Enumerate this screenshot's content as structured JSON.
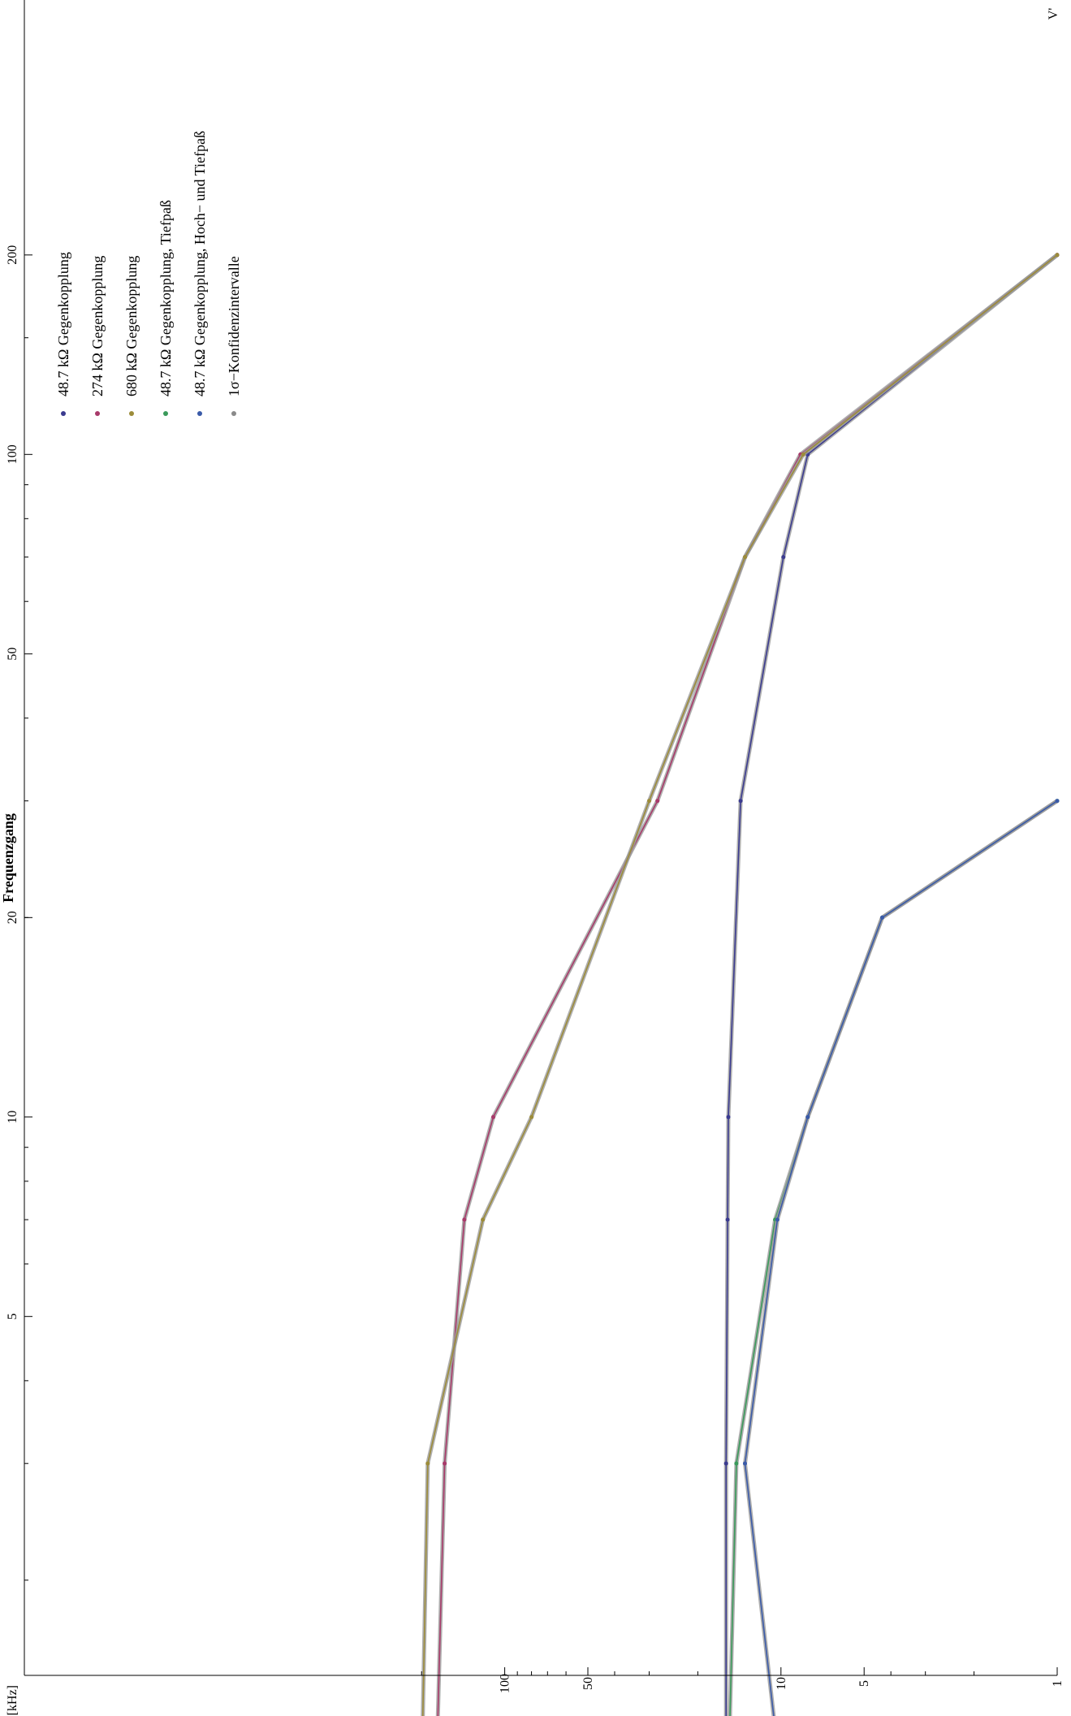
{
  "chart_data": {
    "type": "line",
    "title": "Frequenzgang",
    "xlabel": "f [kHz]",
    "ylabel": "V'",
    "xscale": "log",
    "yscale": "log",
    "xlim": [
      1,
      230
    ],
    "ylim": [
      1,
      250
    ],
    "x_ticks": [
      200,
      100,
      50,
      20,
      10,
      5,
      1
    ],
    "y_ticks": [
      100,
      50,
      10,
      5,
      1
    ],
    "legend_position": "top-left",
    "series": [
      {
        "name": "48.7 kΩ Gegenkopplung",
        "color": "#3b3b8f",
        "x": [
          1,
          3,
          7,
          10,
          30,
          70,
          100,
          200
        ],
        "y": [
          15.8,
          15.8,
          15.6,
          15.5,
          14,
          9.8,
          8,
          1
        ]
      },
      {
        "name": "274 kΩ Gegenkopplung",
        "color": "#a83a6a",
        "x": [
          1,
          3,
          7,
          10,
          30,
          70,
          100,
          200
        ],
        "y": [
          177,
          165,
          140,
          110,
          28,
          13.5,
          8.5,
          1
        ]
      },
      {
        "name": "680 kΩ Gegenkopplung",
        "color": "#9c8c3a",
        "x": [
          1,
          3,
          7,
          10,
          30,
          70,
          100,
          200
        ],
        "y": [
          200,
          190,
          120,
          80,
          30,
          13.5,
          8.3,
          1
        ]
      },
      {
        "name": "48.7 kΩ Gegenkopplung, Tiefpaß",
        "color": "#3a9a5a",
        "x": [
          1,
          3,
          7,
          10,
          20,
          30
        ],
        "y": [
          15.5,
          14.5,
          10.5,
          8,
          4.3,
          1
        ]
      },
      {
        "name": "48.7 kΩ Gegenkopplung, Hoch− und Tiefpaß",
        "color": "#3a5aa8",
        "x": [
          1,
          3,
          7,
          10,
          20,
          30
        ],
        "y": [
          10,
          13.5,
          10.3,
          8,
          4.3,
          1
        ]
      },
      {
        "name": "1σ−Konfidenzintervalle",
        "color": "#8a8a8a",
        "x": [],
        "y": []
      }
    ]
  }
}
